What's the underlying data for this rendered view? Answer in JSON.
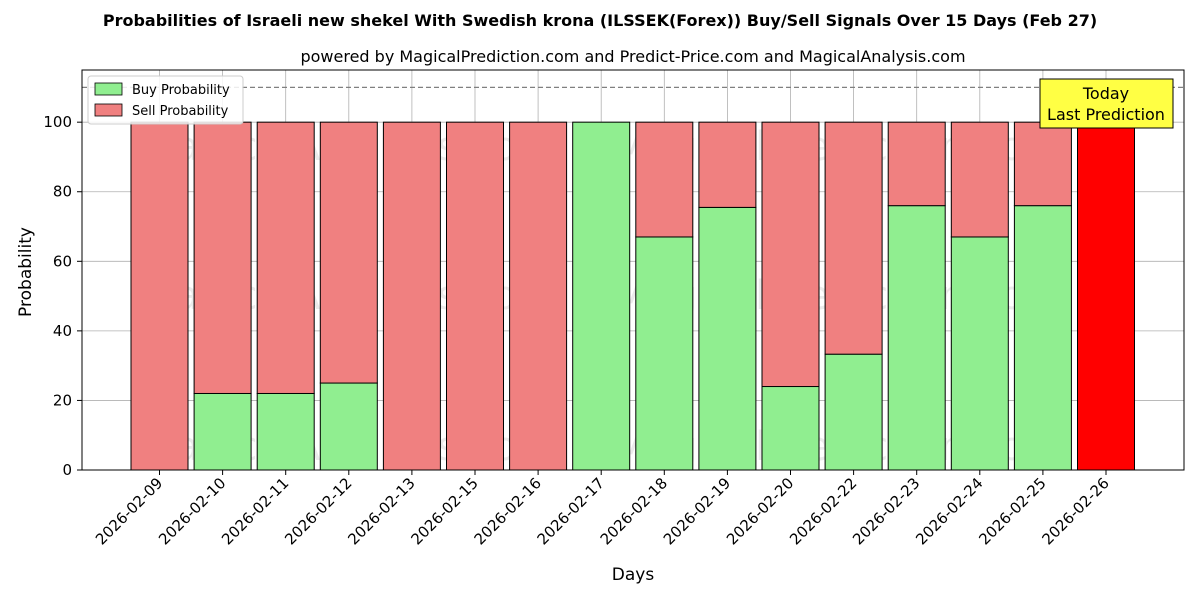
{
  "chart_data": {
    "type": "bar",
    "stacked": true,
    "title": "Probabilities of Israeli new shekel With Swedish krona (ILSSEK(Forex)) Buy/Sell Signals Over 15 Days (Feb 27)",
    "subtitle": "powered by MagicalPrediction.com and Predict-Price.com and MagicalAnalysis.com",
    "xlabel": "Days",
    "ylabel": "Probability",
    "ylim": [
      0,
      115
    ],
    "yticks": [
      0,
      20,
      40,
      60,
      80,
      100
    ],
    "reference_line": 110,
    "grid": true,
    "legend_position": "top-left",
    "categories": [
      "2026-02-09",
      "2026-02-10",
      "2026-02-11",
      "2026-02-12",
      "2026-02-13",
      "2026-02-15",
      "2026-02-16",
      "2026-02-17",
      "2026-02-18",
      "2026-02-19",
      "2026-02-20",
      "2026-02-22",
      "2026-02-23",
      "2026-02-24",
      "2026-02-25",
      "2026-02-26"
    ],
    "series": [
      {
        "name": "Buy Probability",
        "color": "#90ee90",
        "values": [
          0,
          22,
          22,
          25,
          0,
          0,
          0,
          100,
          67,
          75.5,
          24,
          33.3,
          76,
          67,
          76,
          0
        ]
      },
      {
        "name": "Sell Probability",
        "color": "#f08080",
        "values": [
          100,
          78,
          78,
          75,
          100,
          100,
          100,
          0,
          33,
          24.5,
          76,
          66.7,
          24,
          33,
          24,
          100
        ]
      }
    ],
    "highlight": {
      "index": 15,
      "color": "#ff0000"
    },
    "annotation": {
      "line1": "Today",
      "line2": "Last Prediction",
      "color": "#ffff44"
    },
    "watermarks": [
      "MagicalAnalysis.com",
      "MagicalPrediction.com"
    ]
  }
}
